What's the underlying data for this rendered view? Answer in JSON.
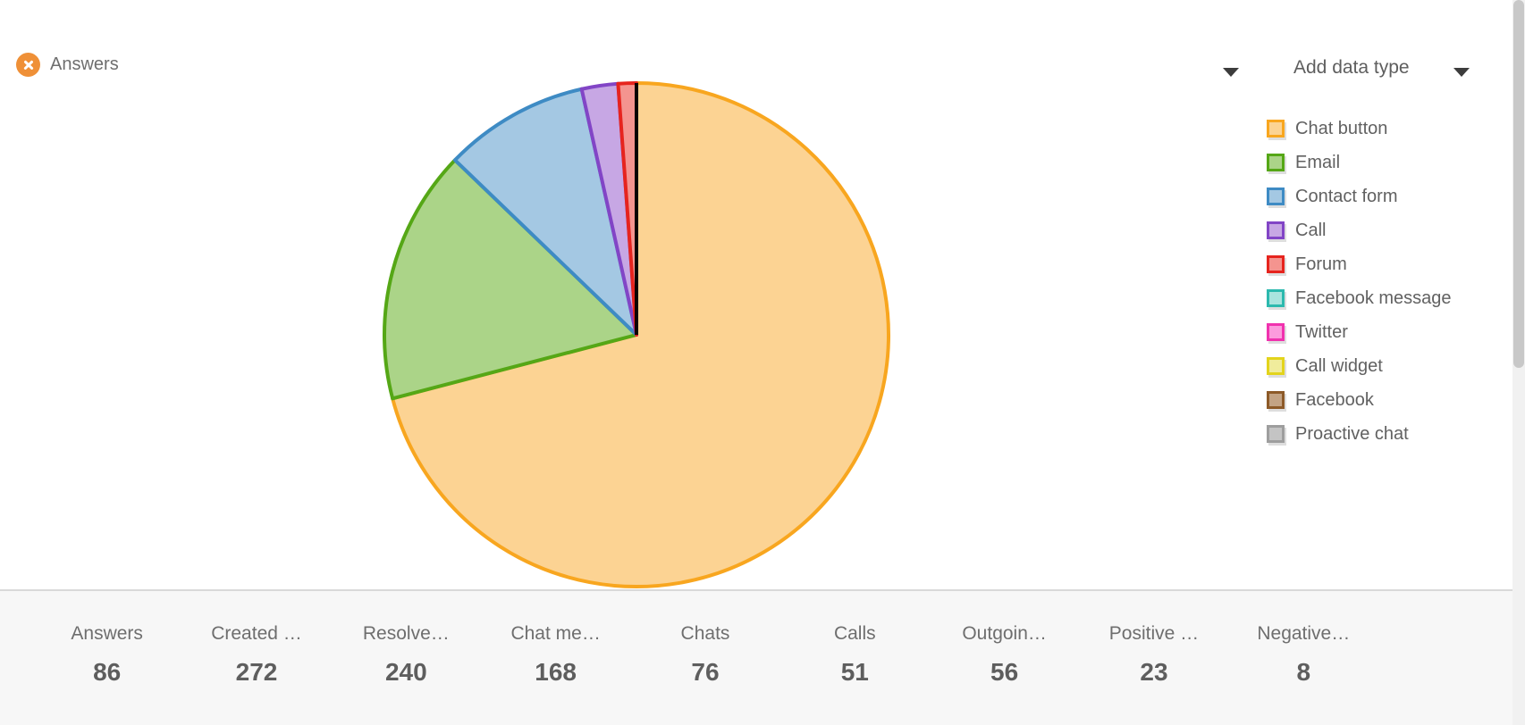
{
  "header": {
    "chip_label": "Answers",
    "add_data_type_label": "Add data type"
  },
  "chart_data": {
    "type": "pie",
    "title": "Answers",
    "total": 86,
    "start_angle_deg": 0,
    "direction": "clockwise",
    "legend_position": "right",
    "series": [
      {
        "label": "Chat button",
        "value": 61,
        "fill": "#FCD393",
        "stroke": "#F8A61F"
      },
      {
        "label": "Email",
        "value": 14,
        "fill": "#ABD488",
        "stroke": "#55A716"
      },
      {
        "label": "Contact form",
        "value": 8,
        "fill": "#A4C8E3",
        "stroke": "#3E8BC4"
      },
      {
        "label": "Call",
        "value": 2,
        "fill": "#C7A7E4",
        "stroke": "#8245C6"
      },
      {
        "label": "Forum",
        "value": 1,
        "fill": "#F4948F",
        "stroke": "#E6241E"
      },
      {
        "label": "Facebook message",
        "value": 0,
        "fill": "#A9E4DE",
        "stroke": "#2CB9AE"
      },
      {
        "label": "Twitter",
        "value": 0,
        "fill": "#FC9BDD",
        "stroke": "#F032AE"
      },
      {
        "label": "Call widget",
        "value": 0,
        "fill": "#F0EC9C",
        "stroke": "#E3D41C"
      },
      {
        "label": "Facebook",
        "value": 0,
        "fill": "#C3A384",
        "stroke": "#8D5A28"
      },
      {
        "label": "Proactive chat",
        "value": 0,
        "fill": "#C4C4C4",
        "stroke": "#9E9E9E"
      }
    ]
  },
  "stats": [
    {
      "label": "Answers",
      "value": "86"
    },
    {
      "label": "Created …",
      "value": "272"
    },
    {
      "label": "Resolve…",
      "value": "240"
    },
    {
      "label": "Chat me…",
      "value": "168"
    },
    {
      "label": "Chats",
      "value": "76"
    },
    {
      "label": "Calls",
      "value": "51"
    },
    {
      "label": "Outgoin…",
      "value": "56"
    },
    {
      "label": "Positive …",
      "value": "23"
    },
    {
      "label": "Negative…",
      "value": "8"
    }
  ],
  "colors": {
    "chip_icon": "#EF9037",
    "divider": "#D9D9D9",
    "stats_background": "#F7F7F7",
    "legend_text": "#616161",
    "label_text": "#6E6E6E",
    "value_text": "#5E5E5E"
  }
}
